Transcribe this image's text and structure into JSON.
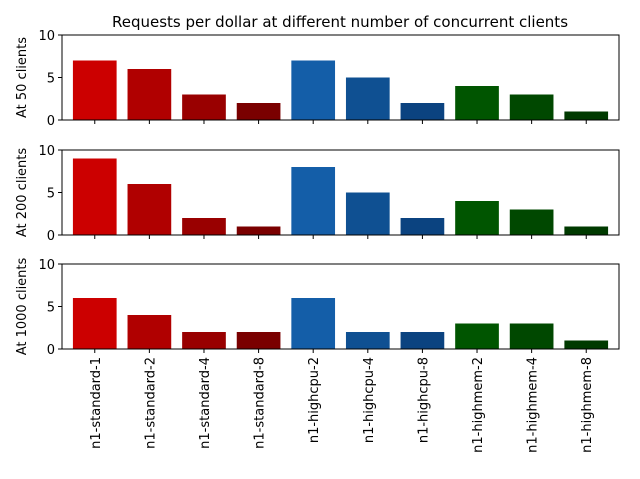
{
  "chart_data": {
    "type": "bar",
    "title": "Requests per dollar at different number of concurrent clients",
    "categories": [
      "n1-standard-1",
      "n1-standard-2",
      "n1-standard-4",
      "n1-standard-8",
      "n1-highcpu-2",
      "n1-highcpu-4",
      "n1-highcpu-8",
      "n1-highmem-2",
      "n1-highmem-4",
      "n1-highmem-8"
    ],
    "bar_colors": [
      "#cc0000",
      "#b00000",
      "#990000",
      "#7a0000",
      "#145ea8",
      "#0f5092",
      "#0b4380",
      "#005500",
      "#004800",
      "#003a00"
    ],
    "subplots": [
      {
        "ylabel": "At 50 clients",
        "ylim": [
          0,
          10
        ],
        "yticks": [
          0,
          5,
          10
        ],
        "values": [
          7,
          6,
          3,
          2,
          7,
          5,
          2,
          4,
          3,
          1
        ]
      },
      {
        "ylabel": "At 200 clients",
        "ylim": [
          0,
          10
        ],
        "yticks": [
          0,
          5,
          10
        ],
        "values": [
          9,
          6,
          2,
          1,
          8,
          5,
          2,
          4,
          3,
          1
        ]
      },
      {
        "ylabel": "At 1000 clients",
        "ylim": [
          0,
          10
        ],
        "yticks": [
          0,
          5,
          10
        ],
        "values": [
          6,
          4,
          2,
          2,
          6,
          2,
          2,
          3,
          3,
          1
        ]
      }
    ]
  }
}
